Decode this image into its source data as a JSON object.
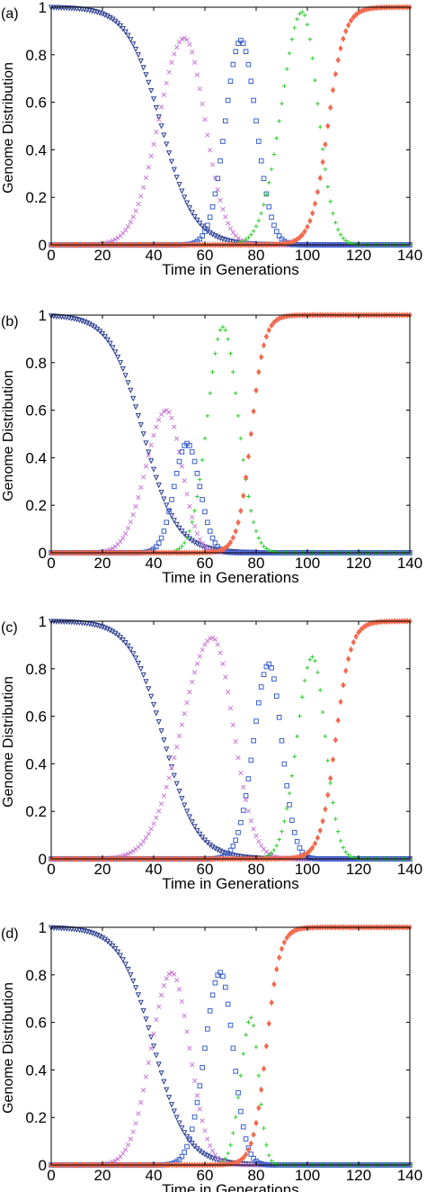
{
  "chart_data": [
    {
      "panel_label": "(a)",
      "type": "scatter",
      "xlabel": "Time in Generations",
      "ylabel": "Genome Distribution",
      "xlim": [
        0,
        140
      ],
      "ylim": [
        0,
        1
      ],
      "xticks": [
        "0",
        "20",
        "40",
        "60",
        "80",
        "100",
        "120",
        "140"
      ],
      "yticks": [
        "0",
        "0.2",
        "0.4",
        "0.6",
        "0.8",
        "1"
      ],
      "x": "0 to 140 step 1",
      "series": [
        {
          "marker": "triangle",
          "color": "#2b3d8f",
          "shape": "decreasing sigmoid",
          "midpoint_x": 43,
          "width": 6.5
        },
        {
          "marker": "x",
          "color": "#c77ad6",
          "shape": "peak",
          "peak_x": 52,
          "peak_y": 0.87,
          "width_left": 10,
          "width_right": 8
        },
        {
          "marker": "square",
          "color": "#3a5fcd",
          "shape": "peak",
          "peak_x": 74,
          "peak_y": 0.86,
          "width_left": 6,
          "width_right": 6
        },
        {
          "marker": "plus",
          "color": "#33cc33",
          "shape": "peak",
          "peak_x": 98,
          "peak_y": 0.98,
          "width_left": 8,
          "width_right": 6
        },
        {
          "marker": "diamond",
          "color": "#f26b4f",
          "shape": "increasing sigmoid",
          "midpoint_x": 108,
          "width": 3.2
        }
      ]
    },
    {
      "panel_label": "(b)",
      "type": "scatter",
      "xlabel": "Time in Generations",
      "ylabel": "Genome Distribution",
      "xlim": [
        0,
        140
      ],
      "ylim": [
        0,
        1
      ],
      "xticks": [
        "0",
        "20",
        "40",
        "60",
        "80",
        "100",
        "120",
        "140"
      ],
      "yticks": [
        "0",
        "0.2",
        "0.4",
        "0.6",
        "0.8",
        "1"
      ],
      "x": "0 to 140 step 1",
      "series": [
        {
          "marker": "triangle",
          "color": "#2b3d8f",
          "shape": "decreasing sigmoid",
          "midpoint_x": 36,
          "width": 6.5
        },
        {
          "marker": "x",
          "color": "#c77ad6",
          "shape": "peak",
          "peak_x": 45,
          "peak_y": 0.6,
          "width_left": 8,
          "width_right": 6
        },
        {
          "marker": "square",
          "color": "#3a5fcd",
          "shape": "peak",
          "peak_x": 53,
          "peak_y": 0.46,
          "width_left": 5,
          "width_right": 5
        },
        {
          "marker": "plus",
          "color": "#33cc33",
          "shape": "peak",
          "peak_x": 67,
          "peak_y": 0.95,
          "width_left": 6,
          "width_right": 6
        },
        {
          "marker": "diamond",
          "color": "#f26b4f",
          "shape": "increasing sigmoid",
          "midpoint_x": 78,
          "width": 2.6
        }
      ]
    },
    {
      "panel_label": "(c)",
      "type": "scatter",
      "xlabel": "Time in Generations",
      "ylabel": "Genome Distribution",
      "xlim": [
        0,
        140
      ],
      "ylim": [
        0,
        1
      ],
      "xticks": [
        "0",
        "20",
        "40",
        "60",
        "80",
        "100",
        "120",
        "140"
      ],
      "yticks": [
        "0",
        "0.2",
        "0.4",
        "0.6",
        "0.8",
        "1"
      ],
      "x": "0 to 140 step 1",
      "series": [
        {
          "marker": "triangle",
          "color": "#2b3d8f",
          "shape": "decreasing sigmoid",
          "midpoint_x": 44,
          "width": 6.5
        },
        {
          "marker": "x",
          "color": "#c77ad6",
          "shape": "peak",
          "peak_x": 63,
          "peak_y": 0.93,
          "width_left": 12,
          "width_right": 8
        },
        {
          "marker": "square",
          "color": "#3a5fcd",
          "shape": "peak",
          "peak_x": 85,
          "peak_y": 0.82,
          "width_left": 6,
          "width_right": 5
        },
        {
          "marker": "plus",
          "color": "#33cc33",
          "shape": "peak",
          "peak_x": 102,
          "peak_y": 0.85,
          "width_left": 6,
          "width_right": 5
        },
        {
          "marker": "diamond",
          "color": "#f26b4f",
          "shape": "increasing sigmoid",
          "midpoint_x": 111,
          "width": 3.0
        }
      ]
    },
    {
      "panel_label": "(d)",
      "type": "scatter",
      "xlabel": "Time in Generations",
      "ylabel": "Genome Distribution",
      "xlim": [
        0,
        140
      ],
      "ylim": [
        0,
        1
      ],
      "xticks": [
        "0",
        "20",
        "40",
        "60",
        "80",
        "100",
        "120",
        "140"
      ],
      "yticks": [
        "0",
        "0.2",
        "0.4",
        "0.6",
        "0.8",
        "1"
      ],
      "x": "0 to 140 step 1",
      "series": [
        {
          "marker": "triangle",
          "color": "#2b3d8f",
          "shape": "decreasing sigmoid",
          "midpoint_x": 40,
          "width": 6.5
        },
        {
          "marker": "x",
          "color": "#c77ad6",
          "shape": "peak",
          "peak_x": 47,
          "peak_y": 0.81,
          "width_left": 8,
          "width_right": 7
        },
        {
          "marker": "square",
          "color": "#3a5fcd",
          "shape": "peak",
          "peak_x": 66,
          "peak_y": 0.81,
          "width_left": 6,
          "width_right": 5
        },
        {
          "marker": "plus",
          "color": "#33cc33",
          "shape": "peak",
          "peak_x": 78,
          "peak_y": 0.62,
          "width_left": 4,
          "width_right": 3
        },
        {
          "marker": "diamond",
          "color": "#f26b4f",
          "shape": "increasing sigmoid",
          "midpoint_x": 84,
          "width": 2.6
        }
      ]
    }
  ]
}
